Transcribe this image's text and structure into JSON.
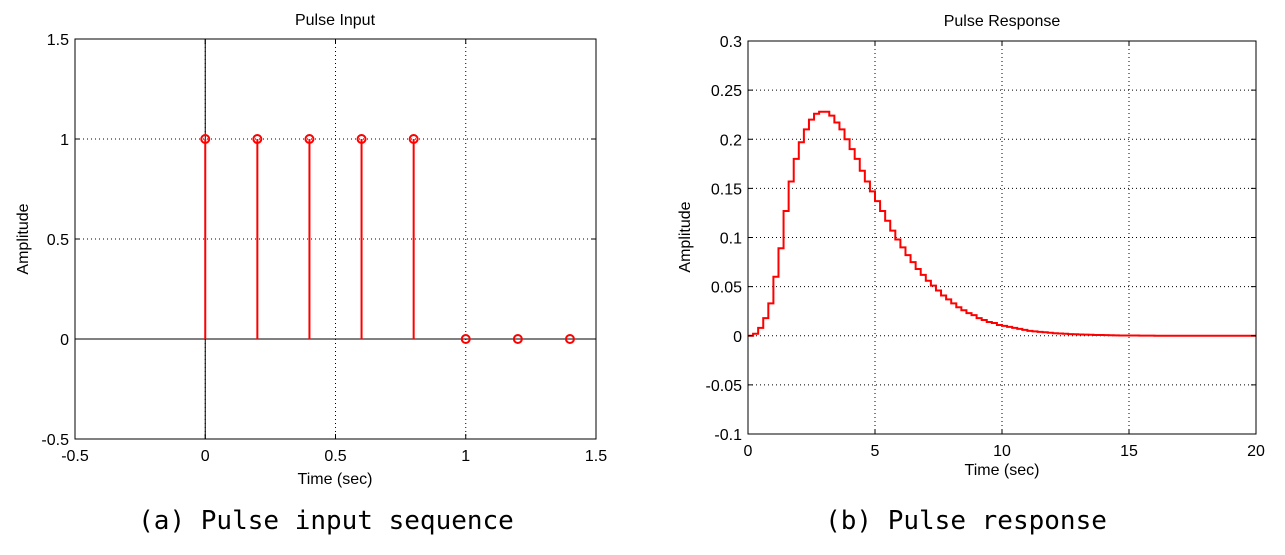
{
  "chart_data": [
    {
      "type": "stem",
      "title": "Pulse Input",
      "xlabel": "Time (sec)",
      "ylabel": "Amplitude",
      "caption": "(a) Pulse input sequence",
      "xlim": [
        -0.5,
        1.5
      ],
      "ylim": [
        -0.5,
        1.5
      ],
      "xticks": [
        -0.5,
        0,
        0.5,
        1,
        1.5
      ],
      "yticks": [
        -0.5,
        0,
        0.5,
        1,
        1.5
      ],
      "xtick_labels": [
        "-0.5",
        "0",
        "0.5",
        "1",
        "1.5"
      ],
      "ytick_labels": [
        "-0.5",
        "0",
        "0.5",
        "1",
        "1.5"
      ],
      "grid": true,
      "series_color": "#ff0000",
      "x": [
        0,
        0.2,
        0.4,
        0.6,
        0.8,
        1.0,
        1.2,
        1.4
      ],
      "y": [
        1,
        1,
        1,
        1,
        1,
        0,
        0,
        0
      ]
    },
    {
      "type": "line",
      "style": "step",
      "title": "Pulse Response",
      "xlabel": "Time (sec)",
      "ylabel": "Amplitude",
      "caption": "(b) Pulse response",
      "xlim": [
        0,
        20
      ],
      "ylim": [
        -0.1,
        0.3
      ],
      "xticks": [
        0,
        5,
        10,
        15,
        20
      ],
      "yticks": [
        -0.1,
        -0.05,
        0,
        0.05,
        0.1,
        0.15,
        0.2,
        0.25,
        0.3
      ],
      "xtick_labels": [
        "0",
        "5",
        "10",
        "15",
        "20"
      ],
      "ytick_labels": [
        "-0.1",
        "-0.05",
        "0",
        "0.05",
        "0.1",
        "0.15",
        "0.2",
        "0.25",
        "0.3"
      ],
      "grid": true,
      "series_color": "#ff0000",
      "x": [
        0,
        0.2,
        0.4,
        0.6,
        0.8,
        1.0,
        1.2,
        1.4,
        1.6,
        1.8,
        2.0,
        2.2,
        2.4,
        2.6,
        2.8,
        3.0,
        3.2,
        3.4,
        3.6,
        3.8,
        4.0,
        4.2,
        4.4,
        4.6,
        4.8,
        5.0,
        5.2,
        5.4,
        5.6,
        5.8,
        6.0,
        6.2,
        6.4,
        6.6,
        6.8,
        7.0,
        7.2,
        7.4,
        7.6,
        7.8,
        8.0,
        8.2,
        8.4,
        8.6,
        8.8,
        9.0,
        9.2,
        9.4,
        9.6,
        9.8,
        10.0,
        10.2,
        10.4,
        10.6,
        10.8,
        11.0,
        11.2,
        11.4,
        11.6,
        11.8,
        12.0,
        12.2,
        12.4,
        12.6,
        12.8,
        13.0,
        13.2,
        13.4,
        13.6,
        13.8,
        14.0,
        14.2,
        14.4,
        14.6,
        14.8,
        15.0,
        15.2,
        15.4,
        15.6,
        15.8,
        16.0,
        20.0
      ],
      "y": [
        0,
        0.002,
        0.008,
        0.018,
        0.033,
        0.06,
        0.089,
        0.127,
        0.157,
        0.18,
        0.197,
        0.21,
        0.22,
        0.226,
        0.228,
        0.228,
        0.224,
        0.217,
        0.21,
        0.2,
        0.19,
        0.18,
        0.168,
        0.157,
        0.147,
        0.137,
        0.127,
        0.117,
        0.107,
        0.098,
        0.09,
        0.082,
        0.075,
        0.068,
        0.062,
        0.056,
        0.051,
        0.046,
        0.041,
        0.037,
        0.033,
        0.029,
        0.026,
        0.023,
        0.021,
        0.018,
        0.016,
        0.014,
        0.013,
        0.011,
        0.01,
        0.009,
        0.008,
        0.007,
        0.006,
        0.005,
        0.0045,
        0.004,
        0.0035,
        0.003,
        0.0026,
        0.0023,
        0.002,
        0.0017,
        0.0015,
        0.0013,
        0.0011,
        0.001,
        0.0008,
        0.0007,
        0.0006,
        0.0005,
        0.0004,
        0.0003,
        0.0003,
        0.0002,
        0.0002,
        0.0001,
        0.0001,
        0.0001,
        0,
        0
      ]
    }
  ]
}
